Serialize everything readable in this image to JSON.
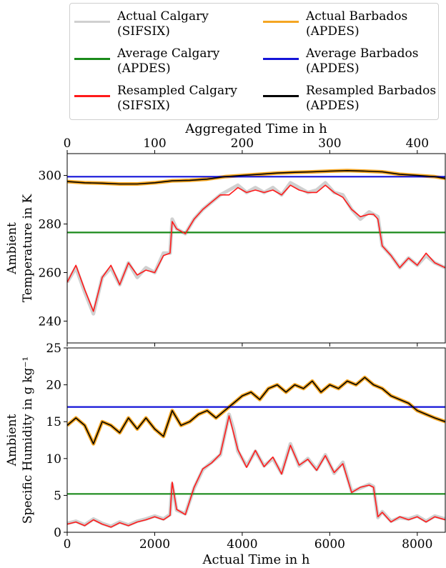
{
  "legend": {
    "items": [
      {
        "label": "Actual Calgary\n(SIFSIX)",
        "color": "#d0d0d0"
      },
      {
        "label": "Average Calgary\n(APDES)",
        "color": "#1a8a1a"
      },
      {
        "label": "Resampled Calgary\n(SIFSIX)",
        "color": "#ff1a1a"
      },
      {
        "label": "Actual Barbados\n(APDES)",
        "color": "#f5a623"
      },
      {
        "label": "Average Barbados\n(APDES)",
        "color": "#1414d8"
      },
      {
        "label": "Resampled Barbados\n(APDES)",
        "color": "#000000"
      }
    ]
  },
  "chart_data": [
    {
      "type": "line",
      "title": "",
      "top_xlabel": "Aggregated Time in h",
      "top_xticks": [
        "0",
        "100",
        "200",
        "300",
        "400"
      ],
      "top_xlim": [
        0,
        432
      ],
      "xlim": [
        0,
        8640
      ],
      "ylabel": [
        "Ambient",
        "Temperature in K"
      ],
      "yticks": [
        "240",
        "260",
        "280",
        "300"
      ],
      "ylim": [
        231,
        309
      ],
      "series": [
        {
          "name": "Actual Calgary (SIFSIX)",
          "color": "#d0d0d0",
          "x": [
            0,
            200,
            400,
            600,
            800,
            1000,
            1200,
            1400,
            1600,
            1800,
            2000,
            2200,
            2350,
            2400,
            2500,
            2700,
            2900,
            3100,
            3300,
            3500,
            3700,
            3900,
            4100,
            4300,
            4500,
            4700,
            4900,
            5100,
            5300,
            5500,
            5700,
            5900,
            6100,
            6300,
            6500,
            6700,
            6900,
            7000,
            7100,
            7200,
            7400,
            7600,
            7800,
            8000,
            8200,
            8400,
            8640
          ],
          "y": [
            256,
            262,
            252,
            243,
            258,
            262,
            255,
            264,
            258,
            262,
            260,
            268,
            268,
            282,
            278,
            276,
            282,
            286,
            289,
            292,
            294,
            296,
            293,
            295,
            293,
            295,
            292,
            297,
            295,
            293,
            294,
            297,
            293,
            292,
            286,
            282,
            285,
            284,
            283,
            271,
            267,
            262,
            266,
            263,
            267,
            264,
            262
          ]
        },
        {
          "name": "Average Calgary (APDES)",
          "color": "#1a8a1a",
          "x": [
            0,
            8640
          ],
          "y": [
            276.5,
            276.5
          ]
        },
        {
          "name": "Resampled Calgary (SIFSIX)",
          "color": "#ff1a1a",
          "x": [
            0,
            200,
            400,
            600,
            800,
            1000,
            1200,
            1400,
            1600,
            1800,
            2000,
            2200,
            2350,
            2400,
            2500,
            2700,
            2900,
            3100,
            3300,
            3500,
            3700,
            3900,
            4100,
            4300,
            4500,
            4700,
            4900,
            5100,
            5300,
            5500,
            5700,
            5900,
            6100,
            6300,
            6500,
            6700,
            6900,
            7000,
            7100,
            7200,
            7400,
            7600,
            7800,
            8000,
            8200,
            8400,
            8640
          ],
          "y": [
            256,
            263,
            253,
            244,
            258,
            263,
            255,
            264,
            259,
            261,
            260,
            267,
            268,
            281,
            278,
            276,
            282,
            286,
            289,
            292,
            292,
            295,
            293,
            294,
            293,
            294,
            292,
            296,
            294,
            293,
            293,
            296,
            293,
            291,
            286,
            283,
            284,
            284,
            282,
            271,
            267,
            262,
            266,
            263,
            268,
            264,
            262
          ]
        },
        {
          "name": "Actual Barbados (APDES)",
          "color": "#f5a623",
          "x": [
            0,
            400,
            800,
            1200,
            1600,
            2000,
            2400,
            2800,
            3200,
            3600,
            4000,
            4400,
            4800,
            5200,
            5600,
            6000,
            6400,
            6800,
            7200,
            7600,
            8000,
            8400,
            8640
          ],
          "y": [
            297.5,
            297,
            296.8,
            296.5,
            296.5,
            297,
            297.8,
            298,
            298.5,
            299.5,
            300,
            300.5,
            301,
            301.3,
            301.5,
            301.8,
            302,
            301.8,
            301.5,
            300.5,
            300,
            299.5,
            298.8
          ]
        },
        {
          "name": "Average Barbados (APDES)",
          "color": "#1414d8",
          "x": [
            0,
            8640
          ],
          "y": [
            299.5,
            299.5
          ]
        },
        {
          "name": "Resampled Barbados (APDES)",
          "color": "#000000",
          "x": [
            0,
            400,
            800,
            1200,
            1600,
            2000,
            2400,
            2800,
            3200,
            3600,
            4000,
            4400,
            4800,
            5200,
            5600,
            6000,
            6400,
            6800,
            7200,
            7600,
            8000,
            8400,
            8640
          ],
          "y": [
            297.5,
            297,
            296.8,
            296.5,
            296.5,
            297,
            297.8,
            298,
            298.5,
            299.5,
            300,
            300.5,
            301,
            301.3,
            301.5,
            301.8,
            302,
            301.8,
            301.5,
            300.5,
            300,
            299.5,
            298.8
          ]
        }
      ]
    },
    {
      "type": "line",
      "title": "",
      "xlabel": "Actual Time in h",
      "xticks": [
        "0",
        "2000",
        "4000",
        "6000",
        "8000"
      ],
      "xlim": [
        0,
        8640
      ],
      "ylabel": [
        "Ambient",
        "Specific Humidity in g kg⁻¹"
      ],
      "yticks": [
        "0",
        "5",
        "10",
        "15",
        "20",
        "25"
      ],
      "ylim": [
        0,
        25
      ],
      "series": [
        {
          "name": "Actual Calgary (SIFSIX)",
          "color": "#d0d0d0",
          "x": [
            0,
            200,
            400,
            600,
            800,
            1000,
            1200,
            1400,
            1600,
            1800,
            2000,
            2200,
            2350,
            2400,
            2500,
            2700,
            2900,
            3100,
            3300,
            3500,
            3700,
            3800,
            3900,
            4100,
            4300,
            4500,
            4700,
            4900,
            5100,
            5300,
            5500,
            5700,
            5900,
            6100,
            6300,
            6500,
            6700,
            6900,
            7000,
            7100,
            7200,
            7400,
            7600,
            7800,
            8000,
            8200,
            8400,
            8640
          ],
          "y": [
            1.2,
            1.5,
            1.0,
            1.8,
            1.2,
            0.8,
            1.4,
            1.0,
            1.5,
            1.8,
            2.2,
            1.8,
            2.4,
            6.5,
            3.0,
            2.5,
            6.0,
            8.5,
            9.5,
            10.5,
            16.0,
            14.0,
            11.0,
            9.0,
            11.0,
            9.0,
            10.0,
            8.0,
            12.0,
            9.0,
            10.0,
            8.5,
            10.5,
            8.0,
            9.5,
            5.5,
            6.0,
            6.5,
            6.2,
            2.0,
            2.8,
            1.5,
            2.0,
            1.8,
            2.2,
            1.5,
            2.2,
            1.8
          ]
        },
        {
          "name": "Average Calgary (APDES)",
          "color": "#1a8a1a",
          "x": [
            0,
            8640
          ],
          "y": [
            5.2,
            5.2
          ]
        },
        {
          "name": "Resampled Calgary (SIFSIX)",
          "color": "#ff1a1a",
          "x": [
            0,
            200,
            400,
            600,
            800,
            1000,
            1200,
            1400,
            1600,
            1800,
            2000,
            2200,
            2350,
            2400,
            2500,
            2700,
            2900,
            3100,
            3300,
            3500,
            3700,
            3800,
            3900,
            4100,
            4300,
            4500,
            4700,
            4900,
            5100,
            5300,
            5500,
            5700,
            5900,
            6100,
            6300,
            6500,
            6700,
            6900,
            7000,
            7100,
            7200,
            7400,
            7600,
            7800,
            8000,
            8200,
            8400,
            8640
          ],
          "y": [
            1.1,
            1.4,
            0.9,
            1.7,
            1.1,
            0.7,
            1.3,
            0.9,
            1.4,
            1.7,
            2.1,
            1.7,
            2.3,
            6.8,
            3.1,
            2.4,
            6.1,
            8.6,
            9.4,
            10.6,
            15.8,
            13.5,
            11.2,
            8.8,
            11.1,
            8.9,
            10.2,
            7.9,
            11.8,
            9.1,
            9.9,
            8.4,
            10.4,
            8.1,
            9.3,
            5.4,
            6.1,
            6.4,
            6.1,
            2.1,
            2.7,
            1.4,
            2.1,
            1.7,
            2.1,
            1.4,
            2.1,
            1.7
          ]
        },
        {
          "name": "Actual Barbados (APDES)",
          "color": "#f5a623",
          "x": [
            0,
            200,
            400,
            600,
            800,
            1000,
            1200,
            1400,
            1600,
            1800,
            2000,
            2200,
            2400,
            2600,
            2800,
            3000,
            3200,
            3400,
            3600,
            3800,
            4000,
            4200,
            4400,
            4600,
            4800,
            5000,
            5200,
            5400,
            5600,
            5800,
            6000,
            6200,
            6400,
            6600,
            6800,
            7000,
            7200,
            7400,
            7600,
            7800,
            8000,
            8200,
            8400,
            8640
          ],
          "y": [
            14.5,
            15.5,
            14.5,
            12.0,
            15.0,
            14.5,
            13.5,
            15.5,
            14.0,
            15.5,
            14.0,
            13.0,
            16.5,
            14.5,
            15.0,
            16.0,
            16.5,
            15.5,
            16.5,
            17.5,
            18.5,
            19.0,
            18.0,
            19.5,
            20.0,
            19.0,
            20.0,
            19.5,
            20.5,
            19.0,
            20.0,
            19.5,
            20.5,
            20.0,
            21.0,
            20.0,
            19.5,
            18.5,
            18.0,
            17.5,
            16.5,
            16.0,
            15.5,
            15.0
          ]
        },
        {
          "name": "Average Barbados (APDES)",
          "color": "#1414d8",
          "x": [
            0,
            8640
          ],
          "y": [
            17.0,
            17.0
          ]
        },
        {
          "name": "Resampled Barbados (APDES)",
          "color": "#000000",
          "x": [
            0,
            200,
            400,
            600,
            800,
            1000,
            1200,
            1400,
            1600,
            1800,
            2000,
            2200,
            2400,
            2600,
            2800,
            3000,
            3200,
            3400,
            3600,
            3800,
            4000,
            4200,
            4400,
            4600,
            4800,
            5000,
            5200,
            5400,
            5600,
            5800,
            6000,
            6200,
            6400,
            6600,
            6800,
            7000,
            7200,
            7400,
            7600,
            7800,
            8000,
            8200,
            8400,
            8640
          ],
          "y": [
            14.5,
            15.5,
            14.5,
            12.0,
            15.0,
            14.5,
            13.5,
            15.5,
            14.0,
            15.5,
            14.0,
            13.0,
            16.5,
            14.5,
            15.0,
            16.0,
            16.5,
            15.5,
            16.5,
            17.5,
            18.5,
            19.0,
            18.0,
            19.5,
            20.0,
            19.0,
            20.0,
            19.5,
            20.5,
            19.0,
            20.0,
            19.5,
            20.5,
            20.0,
            21.0,
            20.0,
            19.5,
            18.5,
            18.0,
            17.5,
            16.5,
            16.0,
            15.5,
            15.0
          ]
        }
      ]
    }
  ]
}
